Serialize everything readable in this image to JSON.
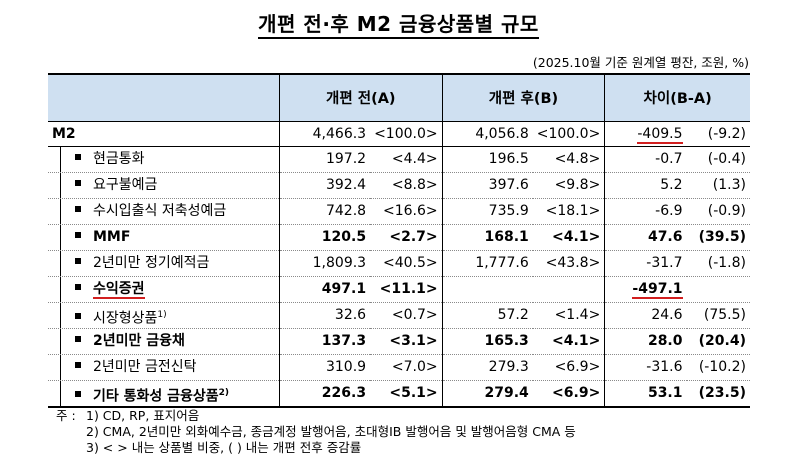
{
  "title": "개편 전·후 M2 금융상품별 규모",
  "unit": "(2025.10월 기준 원계열 평잔, 조원, %)",
  "headers": {
    "label": "",
    "before": "개편 전(A)",
    "after": "개편 후(B)",
    "diff": "차이(B-A)"
  },
  "rows": [
    {
      "label": "M2",
      "v1": "4,466.3",
      "p1": "<100.0>",
      "v2": "4,056.8",
      "p2": "<100.0>",
      "d": "-409.5",
      "dp": "(-9.2)"
    },
    {
      "label": "현금통화",
      "v1": "197.2",
      "p1": "<4.4>",
      "v2": "196.5",
      "p2": "<4.8>",
      "d": "-0.7",
      "dp": "(-0.4)"
    },
    {
      "label": "요구불예금",
      "v1": "392.4",
      "p1": "<8.8>",
      "v2": "397.6",
      "p2": "<9.8>",
      "d": "5.2",
      "dp": "(1.3)"
    },
    {
      "label": "수시입출식 저축성예금",
      "v1": "742.8",
      "p1": "<16.6>",
      "v2": "735.9",
      "p2": "<18.1>",
      "d": "-6.9",
      "dp": "(-0.9)"
    },
    {
      "label": "MMF",
      "v1": "120.5",
      "p1": "<2.7>",
      "v2": "168.1",
      "p2": "<4.1>",
      "d": "47.6",
      "dp": "(39.5)"
    },
    {
      "label": "2년미만 정기예적금",
      "v1": "1,809.3",
      "p1": "<40.5>",
      "v2": "1,777.6",
      "p2": "<43.8>",
      "d": "-31.7",
      "dp": "(-1.8)"
    },
    {
      "label": "수익증권",
      "v1": "497.1",
      "p1": "<11.1>",
      "v2": "",
      "p2": "",
      "d": "-497.1",
      "dp": ""
    },
    {
      "label": "시장형상품",
      "sup": "1)",
      "v1": "32.6",
      "p1": "<0.7>",
      "v2": "57.2",
      "p2": "<1.4>",
      "d": "24.6",
      "dp": "(75.5)"
    },
    {
      "label": "2년미만 금융채",
      "v1": "137.3",
      "p1": "<3.1>",
      "v2": "165.3",
      "p2": "<4.1>",
      "d": "28.0",
      "dp": "(20.4)"
    },
    {
      "label": "2년미만 금전신탁",
      "v1": "310.9",
      "p1": "<7.0>",
      "v2": "279.3",
      "p2": "<6.9>",
      "d": "-31.6",
      "dp": "(-10.2)"
    },
    {
      "label": "기타 통화성 금융상품",
      "sup": "2)",
      "v1": "226.3",
      "p1": "<5.1>",
      "v2": "279.4",
      "p2": "<6.9>",
      "d": "53.1",
      "dp": "(23.5)"
    }
  ],
  "notes": {
    "prefix": "주 :",
    "n1": "1) CD, RP, 표지어음",
    "n2": "2) CMA, 2년미만 외화예수금, 종금계정 발행어음, 초대형IB 발행어음 및 발행어음형 CMA 등",
    "n3": "3) < > 내는 상품별 비중, ( ) 내는 개편 전후 증감률"
  }
}
